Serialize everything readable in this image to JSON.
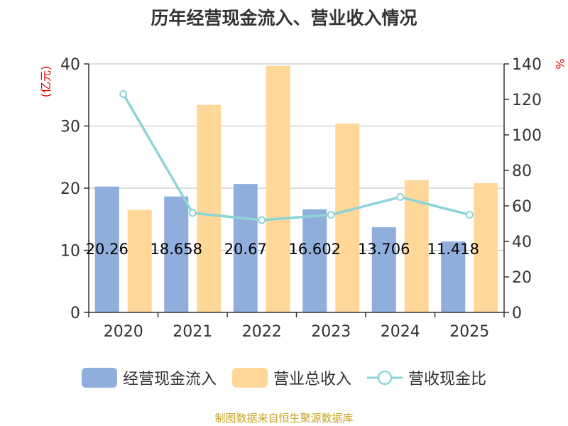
{
  "chart_data": {
    "type": "bar",
    "title": "历年经营现金流入、营业收入情况",
    "categories": [
      "2020",
      "2021",
      "2022",
      "2023",
      "2024",
      "2025"
    ],
    "series": [
      {
        "name": "经营现金流入",
        "axis": "left",
        "type": "bar",
        "color": "#8FAEDB",
        "values": [
          20.26,
          18.658,
          20.67,
          16.602,
          13.706,
          11.418
        ]
      },
      {
        "name": "营业总收入",
        "axis": "left",
        "type": "bar",
        "color": "#FFD899",
        "values": [
          16.5,
          33.4,
          39.7,
          30.4,
          21.3,
          20.8
        ]
      },
      {
        "name": "营收现金比",
        "axis": "right",
        "type": "line",
        "color": "#8DD4D8",
        "values": [
          123,
          56,
          52,
          55,
          65,
          55
        ]
      }
    ],
    "data_labels": [
      "20.26",
      "18.658",
      "20.67",
      "16.602",
      "13.706",
      "11.418"
    ],
    "ylabel": "(亿元)",
    "y2label": "%",
    "ylim": [
      0,
      40
    ],
    "yticks": [
      0,
      10,
      20,
      30,
      40
    ],
    "y2lim": [
      0,
      140
    ],
    "y2ticks": [
      0,
      20,
      40,
      60,
      80,
      100,
      120,
      140
    ],
    "grid": true,
    "legend_position": "bottom"
  },
  "source": "制图数据来自恒生聚源数据库",
  "colors": {
    "title": "#333333",
    "axis_label": "#E00000",
    "source": "#C9A227",
    "grid": "#C8C8C8",
    "axis": "#333333"
  }
}
